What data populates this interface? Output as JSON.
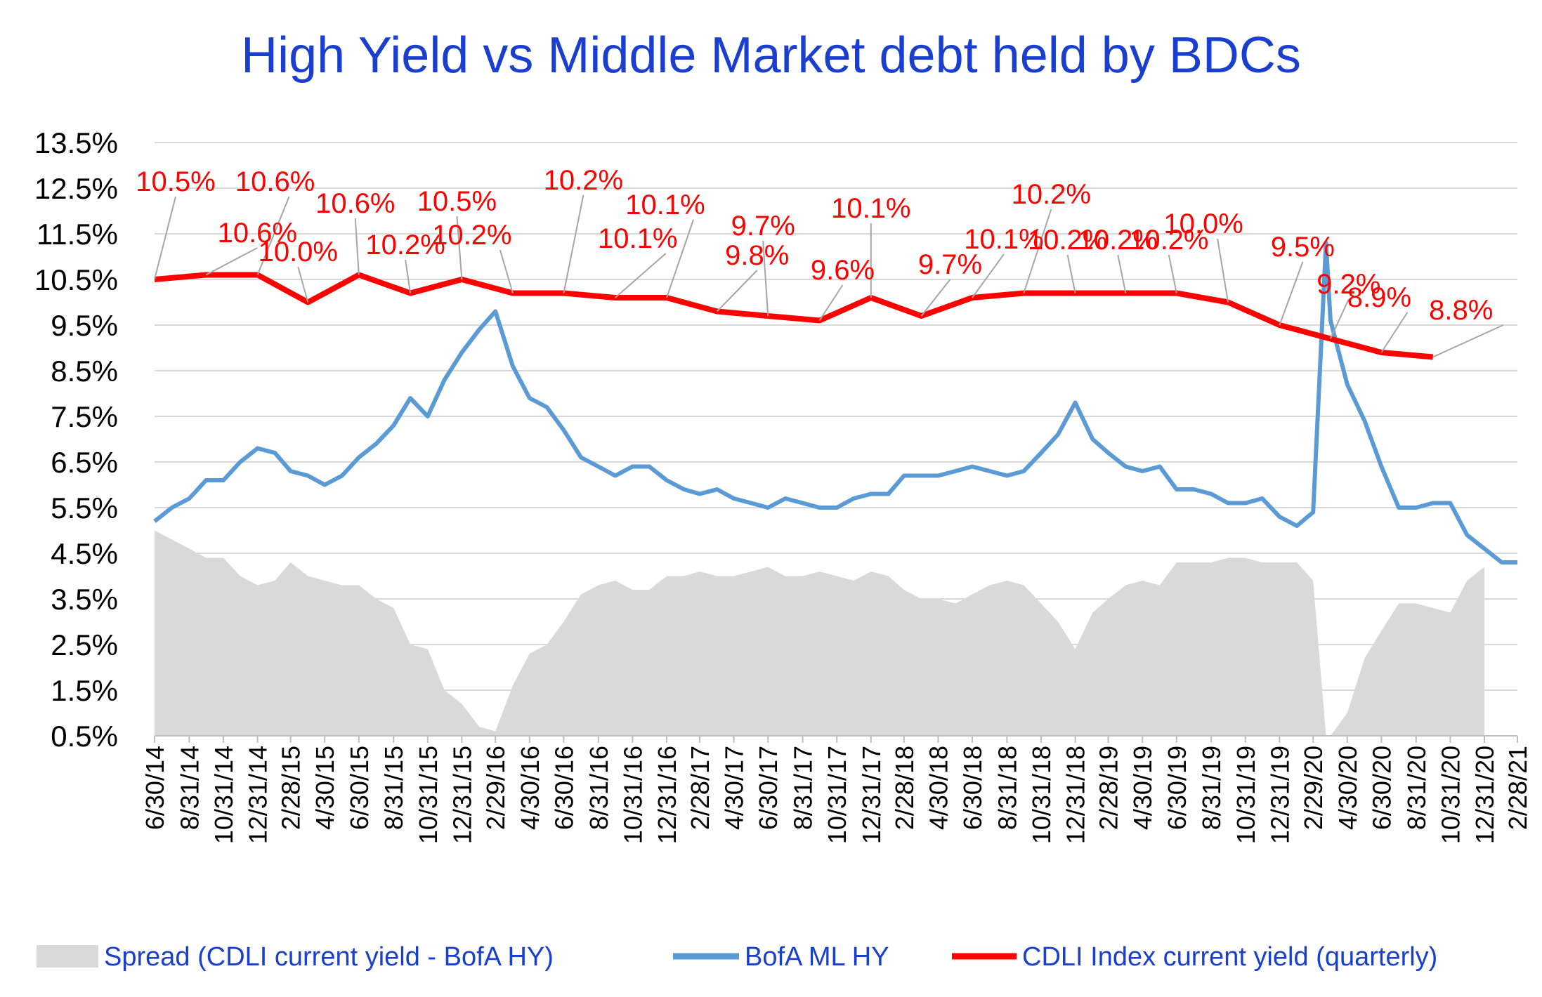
{
  "chart_data": {
    "type": "line",
    "title": "High Yield  vs  Middle Market debt held by BDCs",
    "xlabel": "",
    "ylabel": "",
    "ylim": [
      0.5,
      13.5
    ],
    "y_ticks": [
      "13.5%",
      "12.5%",
      "11.5%",
      "10.5%",
      "9.5%",
      "8.5%",
      "7.5%",
      "6.5%",
      "5.5%",
      "4.5%",
      "3.5%",
      "2.5%",
      "1.5%",
      "0.5%"
    ],
    "x_tick_labels": [
      "6/30/14",
      "8/31/14",
      "10/31/14",
      "12/31/14",
      "2/28/15",
      "4/30/15",
      "6/30/15",
      "8/31/15",
      "10/31/15",
      "12/31/15",
      "2/29/16",
      "4/30/16",
      "6/30/16",
      "8/31/16",
      "10/31/16",
      "12/31/16",
      "2/28/17",
      "4/30/17",
      "6/30/17",
      "8/31/17",
      "10/31/17",
      "12/31/17",
      "2/28/18",
      "4/30/18",
      "6/30/18",
      "8/31/18",
      "10/31/18",
      "12/31/18",
      "2/28/19",
      "4/30/19",
      "6/30/19",
      "8/31/19",
      "10/31/19",
      "12/31/19",
      "2/29/20",
      "4/30/20",
      "6/30/20",
      "8/31/20",
      "10/31/20",
      "12/31/20",
      "2/28/21"
    ],
    "grid": true,
    "legend_position": "bottom",
    "series": [
      {
        "name": "CDLI Index current yield (quarterly)",
        "type": "line",
        "color": "#ff0000",
        "x": [
          "6/30/14",
          "9/30/14",
          "12/31/14",
          "3/31/15",
          "6/30/15",
          "9/30/15",
          "12/31/15",
          "3/31/16",
          "6/30/16",
          "9/30/16",
          "12/31/16",
          "3/31/17",
          "6/30/17",
          "9/30/17",
          "12/31/17",
          "3/31/18",
          "6/30/18",
          "9/30/18",
          "12/31/18",
          "3/31/19",
          "6/30/19",
          "9/30/19",
          "12/31/19",
          "3/31/20",
          "6/30/20",
          "9/30/20"
        ],
        "values": [
          10.5,
          10.6,
          10.6,
          10.0,
          10.6,
          10.2,
          10.5,
          10.2,
          10.2,
          10.1,
          10.1,
          9.8,
          9.7,
          9.6,
          10.1,
          9.7,
          10.1,
          10.2,
          10.2,
          10.2,
          10.2,
          10.0,
          9.5,
          9.2,
          8.9,
          8.8
        ],
        "labels": [
          "10.5%",
          "10.6%",
          "10.6%",
          "10.0%",
          "10.6%",
          "10.2%",
          "10.5%",
          "10.2%",
          "10.2%",
          "10.1%",
          "10.1%",
          "9.8%",
          "9.7%",
          "9.6%",
          "10.1%",
          "9.7%",
          "10.1%",
          "10.2%",
          "10.2%",
          "10.2%",
          "10.2%",
          "10.0%",
          "9.5%",
          "9.2%",
          "8.9%",
          "8.8%"
        ]
      },
      {
        "name": "BofA ML HY",
        "type": "line",
        "color": "#5b9bd5",
        "x": [
          "6/30/14",
          "7/31/14",
          "8/31/14",
          "9/30/14",
          "10/31/14",
          "11/30/14",
          "12/31/14",
          "1/31/15",
          "2/28/15",
          "3/31/15",
          "4/30/15",
          "5/31/15",
          "6/30/15",
          "7/31/15",
          "8/31/15",
          "9/30/15",
          "10/31/15",
          "11/30/15",
          "12/31/15",
          "1/31/16",
          "2/29/16",
          "3/31/16",
          "4/30/16",
          "5/31/16",
          "6/30/16",
          "7/31/16",
          "8/31/16",
          "9/30/16",
          "10/31/16",
          "11/30/16",
          "12/31/16",
          "1/31/17",
          "2/28/17",
          "3/31/17",
          "4/30/17",
          "5/31/17",
          "6/30/17",
          "7/31/17",
          "8/31/17",
          "9/30/17",
          "10/31/17",
          "11/30/17",
          "12/31/17",
          "1/31/18",
          "2/28/18",
          "3/31/18",
          "4/30/18",
          "5/31/18",
          "6/30/18",
          "7/31/18",
          "8/31/18",
          "9/30/18",
          "10/31/18",
          "11/30/18",
          "12/31/18",
          "1/31/19",
          "2/28/19",
          "3/31/19",
          "4/30/19",
          "5/31/19",
          "6/30/19",
          "7/31/19",
          "8/31/19",
          "9/30/19",
          "10/31/19",
          "11/30/19",
          "12/31/19",
          "1/31/20",
          "2/29/20",
          "3/23/20",
          "3/31/20",
          "4/30/20",
          "5/31/20",
          "6/30/20",
          "7/31/20",
          "8/31/20",
          "9/30/20",
          "10/31/20",
          "11/30/20",
          "12/31/20",
          "1/31/21",
          "2/28/21"
        ],
        "values": [
          5.2,
          5.5,
          5.7,
          6.1,
          6.1,
          6.5,
          6.8,
          6.7,
          6.3,
          6.2,
          6.0,
          6.2,
          6.6,
          6.9,
          7.3,
          7.9,
          7.5,
          8.3,
          8.9,
          9.4,
          9.8,
          8.6,
          7.9,
          7.7,
          7.2,
          6.6,
          6.4,
          6.2,
          6.4,
          6.4,
          6.1,
          5.9,
          5.8,
          5.9,
          5.7,
          5.6,
          5.5,
          5.7,
          5.6,
          5.5,
          5.5,
          5.7,
          5.8,
          5.8,
          6.2,
          6.2,
          6.2,
          6.3,
          6.4,
          6.3,
          6.2,
          6.3,
          6.7,
          7.1,
          7.8,
          7.0,
          6.7,
          6.4,
          6.3,
          6.4,
          5.9,
          5.9,
          5.8,
          5.6,
          5.6,
          5.7,
          5.3,
          5.1,
          5.4,
          11.3,
          9.6,
          8.2,
          7.4,
          6.4,
          5.5,
          5.5,
          5.6,
          5.6,
          4.9,
          4.6,
          4.3,
          4.3
        ]
      },
      {
        "name": "Spread (CDLI current yield - BofA HY)",
        "type": "area",
        "color": "#d9d9d9",
        "x": [
          "6/30/14",
          "7/31/14",
          "8/31/14",
          "9/30/14",
          "10/31/14",
          "11/30/14",
          "12/31/14",
          "1/31/15",
          "2/28/15",
          "3/31/15",
          "4/30/15",
          "5/31/15",
          "6/30/15",
          "7/31/15",
          "8/31/15",
          "9/30/15",
          "10/31/15",
          "11/30/15",
          "12/31/15",
          "1/31/16",
          "2/29/16",
          "3/31/16",
          "4/30/16",
          "5/31/16",
          "6/30/16",
          "7/31/16",
          "8/31/16",
          "9/30/16",
          "10/31/16",
          "11/30/16",
          "12/31/16",
          "1/31/17",
          "2/28/17",
          "3/31/17",
          "4/30/17",
          "5/31/17",
          "6/30/17",
          "7/31/17",
          "8/31/17",
          "9/30/17",
          "10/31/17",
          "11/30/17",
          "12/31/17",
          "1/31/18",
          "2/28/18",
          "3/31/18",
          "4/30/18",
          "5/31/18",
          "6/30/18",
          "7/31/18",
          "8/31/18",
          "9/30/18",
          "10/31/18",
          "11/30/18",
          "12/31/18",
          "1/31/19",
          "2/28/19",
          "3/31/19",
          "4/30/19",
          "5/31/19",
          "6/30/19",
          "7/31/19",
          "8/31/19",
          "9/30/19",
          "10/31/19",
          "11/30/19",
          "12/31/19",
          "1/31/20",
          "2/29/20",
          "3/23/20",
          "3/31/20",
          "4/30/20",
          "5/31/20",
          "6/30/20",
          "7/31/20",
          "8/31/20",
          "9/30/20",
          "10/31/20",
          "11/30/20",
          "12/31/20"
        ],
        "values": [
          5.0,
          4.8,
          4.6,
          4.4,
          4.4,
          4.0,
          3.8,
          3.9,
          4.3,
          4.0,
          3.9,
          3.8,
          3.8,
          3.5,
          3.3,
          2.5,
          2.4,
          1.5,
          1.2,
          0.7,
          0.6,
          1.6,
          2.3,
          2.5,
          3.0,
          3.6,
          3.8,
          3.9,
          3.7,
          3.7,
          4.0,
          4.0,
          4.1,
          4.0,
          4.0,
          4.1,
          4.2,
          4.0,
          4.0,
          4.1,
          4.0,
          3.9,
          4.1,
          4.0,
          3.7,
          3.5,
          3.5,
          3.4,
          3.6,
          3.8,
          3.9,
          3.8,
          3.4,
          3.0,
          2.4,
          3.2,
          3.5,
          3.8,
          3.9,
          3.8,
          4.3,
          4.3,
          4.3,
          4.4,
          4.4,
          4.3,
          4.3,
          4.3,
          3.9,
          0.5,
          0.5,
          1.0,
          2.2,
          2.8,
          3.4,
          3.4,
          3.3,
          3.2,
          3.9,
          4.2
        ]
      }
    ]
  }
}
